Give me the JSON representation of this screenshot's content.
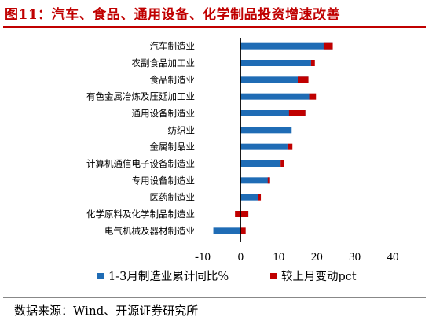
{
  "figure": {
    "title": "图11：汽车、食品、通用设备、化学制品投资增速改善",
    "source": "数据来源：Wind、开源证券研究所"
  },
  "chart_data": {
    "type": "bar",
    "orientation": "horizontal",
    "categories": [
      "汽车制造业",
      "农副食品加工业",
      "食品制造业",
      "有色金属冶炼及压延加工业",
      "通用设备制造业",
      "纺织业",
      "金属制品业",
      "计算机通信电子设备制造业",
      "专用设备制造业",
      "医药制造业",
      "化学原料及化学制品制造业",
      "电气机械及器材制造业"
    ],
    "series": [
      {
        "name": "1-3月制造业累计同比%",
        "color": "#1f6cb5",
        "values": [
          24.2,
          18.5,
          17.8,
          18.0,
          17.0,
          13.4,
          12.3,
          10.5,
          7.7,
          4.5,
          2.0,
          -7.2
        ]
      },
      {
        "name": "较上月变动pct",
        "color": "#c00000",
        "values": [
          -2.4,
          1.0,
          -2.8,
          1.8,
          -4.3,
          0.0,
          1.3,
          0.8,
          -0.6,
          0.8,
          -3.5,
          1.3
        ]
      }
    ],
    "xlim": [
      -10,
      40
    ],
    "xticks": [
      -10,
      0,
      10,
      20,
      30,
      40
    ],
    "grid": false,
    "legend_position": "bottom"
  }
}
